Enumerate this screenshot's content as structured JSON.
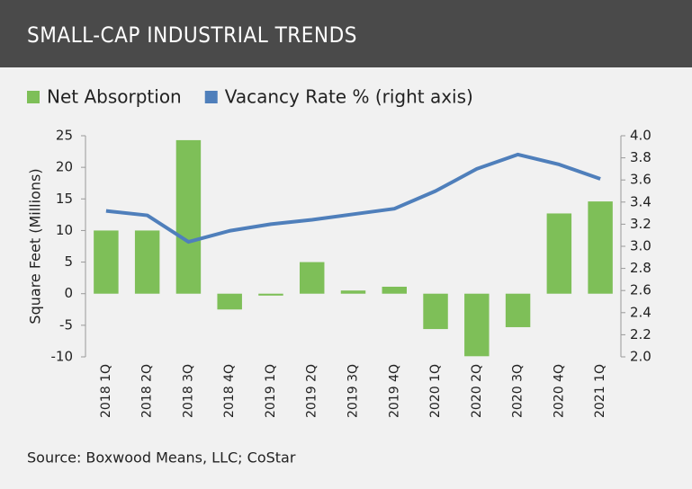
{
  "chart_data": {
    "type": "bar-line",
    "title": "SMALL-CAP INDUSTRIAL TRENDS",
    "ylabel": "Square Feet (Millions)",
    "source": "Source: Boxwood Means, LLC; CoStar",
    "categories": [
      "2018 1Q",
      "2018 2Q",
      "2018 3Q",
      "2018 4Q",
      "2019 1Q",
      "2019 2Q",
      "2019 3Q",
      "2019 4Q",
      "2020 1Q",
      "2020 2Q",
      "2020 3Q",
      "2020 4Q",
      "2021 1Q"
    ],
    "series": [
      {
        "name": "Net Absorption",
        "type": "bar",
        "color": "#7ebf58",
        "values": [
          10,
          10,
          24.3,
          -2.5,
          -0.3,
          5,
          0.5,
          1.1,
          -5.6,
          -9.9,
          -5.3,
          12.7,
          14.6
        ]
      },
      {
        "name": "Vacancy Rate % (right axis)",
        "type": "line",
        "axis": "y2",
        "color": "#4f7fbb",
        "values": [
          3.32,
          3.28,
          3.04,
          3.14,
          3.2,
          3.24,
          3.29,
          3.34,
          3.5,
          3.7,
          3.83,
          3.74,
          3.61
        ]
      }
    ],
    "ylim": [
      -10,
      25
    ],
    "yticks": [
      -10,
      -5,
      0,
      5,
      10,
      15,
      20,
      25
    ],
    "y2lim": [
      2.0,
      4.0
    ],
    "y2ticks": [
      {
        "value": 2,
        "label": "2.0"
      },
      2.2,
      2.4,
      2.6,
      2.8,
      {
        "value": 3,
        "label": "3.0"
      },
      3.2,
      3.4,
      3.6,
      3.8,
      {
        "value": 4,
        "label": "4.0"
      }
    ]
  }
}
